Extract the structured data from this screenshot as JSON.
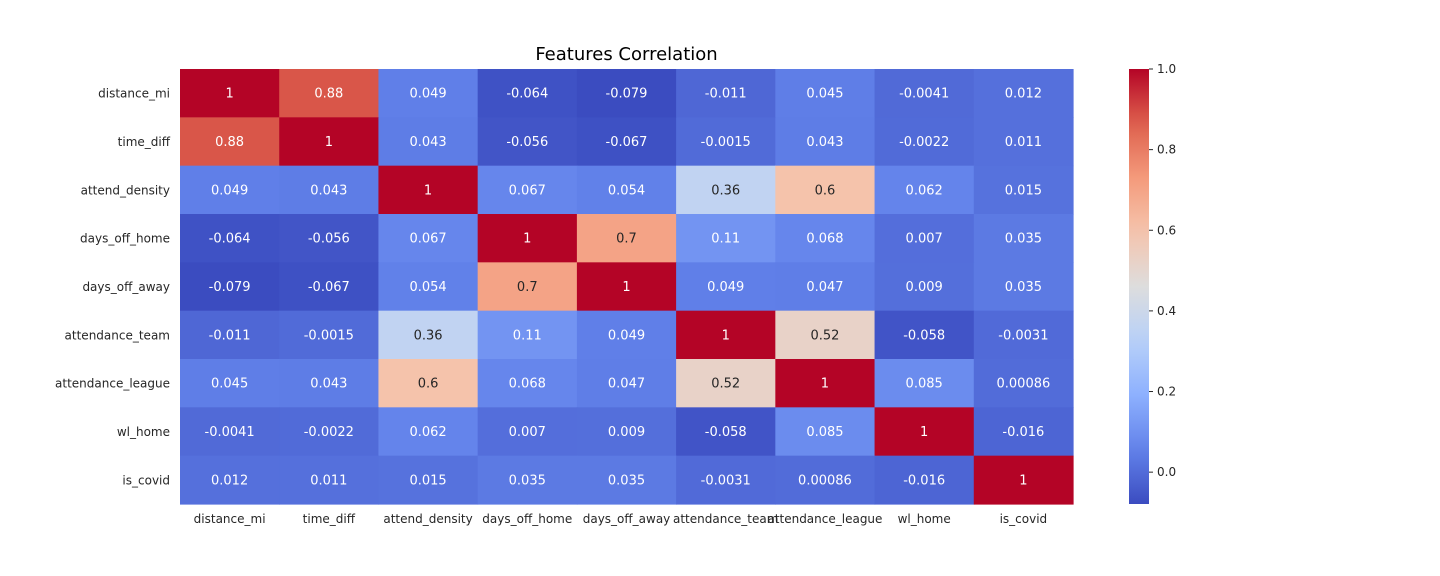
{
  "chart_data": {
    "type": "heatmap",
    "title": "Features Correlation",
    "xlabel": "",
    "ylabel": "",
    "colormap": "coolwarm",
    "vmin": -0.079,
    "vmax": 1.0,
    "annotations": true,
    "rows": [
      "distance_mi",
      "time_diff",
      "attend_density",
      "days_off_home",
      "days_off_away",
      "attendance_team",
      "attendance_league",
      "wl_home",
      "is_covid"
    ],
    "cols": [
      "distance_mi",
      "time_diff",
      "attend_density",
      "days_off_home",
      "days_off_away",
      "attendance_team",
      "attendance_league",
      "wl_home",
      "is_covid"
    ],
    "values": [
      [
        1,
        0.88,
        0.049,
        -0.064,
        -0.079,
        -0.011,
        0.045,
        -0.0041,
        0.012
      ],
      [
        0.88,
        1,
        0.043,
        -0.056,
        -0.067,
        -0.0015,
        0.043,
        -0.0022,
        0.011
      ],
      [
        0.049,
        0.043,
        1,
        0.067,
        0.054,
        0.36,
        0.6,
        0.062,
        0.015
      ],
      [
        -0.064,
        -0.056,
        0.067,
        1,
        0.7,
        0.11,
        0.068,
        0.007,
        0.035
      ],
      [
        -0.079,
        -0.067,
        0.054,
        0.7,
        1,
        0.049,
        0.047,
        0.009,
        0.035
      ],
      [
        -0.011,
        -0.0015,
        0.36,
        0.11,
        0.049,
        1,
        0.52,
        -0.058,
        -0.0031
      ],
      [
        0.045,
        0.043,
        0.6,
        0.068,
        0.047,
        0.52,
        1,
        0.085,
        0.00086
      ],
      [
        -0.0041,
        -0.0022,
        0.062,
        0.007,
        0.009,
        -0.058,
        0.085,
        1,
        -0.016
      ],
      [
        0.012,
        0.011,
        0.015,
        0.035,
        0.035,
        -0.0031,
        0.00086,
        -0.016,
        1
      ]
    ],
    "colorbar_ticks": [
      "0.0",
      "0.2",
      "0.4",
      "0.6",
      "0.8",
      "1.0"
    ],
    "colorbar_tick_values": [
      0.0,
      0.2,
      0.4,
      0.6,
      0.8,
      1.0
    ],
    "grid": false,
    "legend": "colorbar-right"
  }
}
